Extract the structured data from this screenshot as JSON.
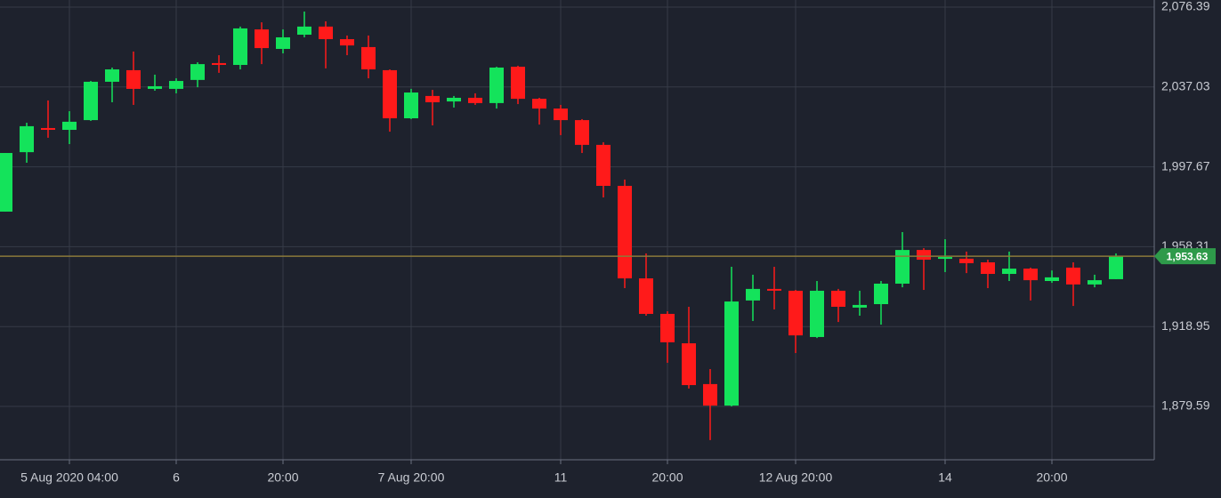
{
  "chart_data": {
    "type": "candlestick",
    "categories": [
      null,
      null,
      null,
      "5 Aug 2020 04:00",
      null,
      null,
      null,
      null,
      "6",
      null,
      null,
      null,
      null,
      "20:00",
      null,
      null,
      null,
      null,
      null,
      "7 Aug 20:00",
      null,
      null,
      null,
      null,
      null,
      null,
      "11",
      null,
      null,
      null,
      null,
      "20:00",
      null,
      null,
      null,
      null,
      null,
      "12 Aug 20:00",
      null,
      null,
      null,
      null,
      null,
      null,
      "14",
      null,
      null,
      null,
      null,
      "20:00",
      null,
      null,
      null
    ],
    "open": [
      1975.6,
      2004.9,
      2016.8,
      2015.9,
      2020.7,
      2039.6,
      2045.3,
      2036.1,
      2036.1,
      2040.5,
      2048.8,
      2047.9,
      2065.4,
      2055.8,
      2062.8,
      2066.8,
      2060.6,
      2056.7,
      2045.3,
      2021.6,
      2032.6,
      2029.9,
      2031.7,
      2029.1,
      2047.0,
      2031.2,
      2026.4,
      2020.7,
      2008.5,
      1988.3,
      1942.7,
      1925.2,
      1910.7,
      1890.6,
      1880.0,
      1931.8,
      1937.5,
      1936.6,
      1913.8,
      1936.6,
      1928.3,
      1930.0,
      1940.1,
      1956.7,
      1952.4,
      1952.4,
      1950.6,
      1944.9,
      1947.5,
      1941.4,
      1948.0,
      1939.7,
      1942.3
    ],
    "high": [
      2004.5,
      2019.4,
      2030.4,
      2025.1,
      2040.0,
      2046.6,
      2054.5,
      2043.1,
      2041.3,
      2049.2,
      2052.7,
      2066.8,
      2068.9,
      2065.4,
      2074.2,
      2069.4,
      2062.4,
      2062.4,
      2045.7,
      2036.1,
      2035.6,
      2032.6,
      2033.9,
      2047.0,
      2047.5,
      2031.7,
      2028.2,
      2021.2,
      2009.8,
      1991.4,
      1955.0,
      1926.5,
      1928.7,
      1898.0,
      1948.4,
      1944.5,
      1948.4,
      1937.0,
      1941.4,
      1937.5,
      1936.6,
      1941.4,
      1965.5,
      1957.6,
      1962.0,
      1955.9,
      1951.9,
      1955.9,
      1948.0,
      1946.6,
      1950.6,
      1944.5,
      1955.0
    ],
    "low": [
      1975.6,
      1999.7,
      2012.0,
      2008.9,
      2020.3,
      2029.5,
      2028.2,
      2035.2,
      2033.9,
      2036.9,
      2044.0,
      2045.7,
      2048.3,
      2053.6,
      2061.5,
      2046.2,
      2052.7,
      2041.3,
      2015.0,
      2021.2,
      2018.1,
      2026.9,
      2028.2,
      2026.4,
      2028.6,
      2018.5,
      2013.3,
      2004.5,
      1982.6,
      1937.9,
      1924.3,
      1901.1,
      1888.4,
      1863.0,
      1879.6,
      1921.7,
      1927.4,
      1905.9,
      1913.3,
      1921.2,
      1924.3,
      1919.9,
      1938.3,
      1937.0,
      1945.8,
      1945.3,
      1937.9,
      1941.4,
      1931.8,
      1940.5,
      1929.1,
      1938.3,
      1942.3
    ],
    "close": [
      2004.5,
      2017.7,
      2015.9,
      2019.9,
      2039.6,
      2045.7,
      2036.1,
      2037.4,
      2040.0,
      2048.3,
      2047.9,
      2065.9,
      2056.2,
      2061.5,
      2066.8,
      2060.6,
      2057.5,
      2045.7,
      2021.6,
      2034.3,
      2029.5,
      2031.7,
      2029.1,
      2046.6,
      2031.2,
      2026.4,
      2020.7,
      2008.5,
      1988.3,
      1942.7,
      1925.2,
      1911.2,
      1890.1,
      1880.0,
      1931.3,
      1937.5,
      1937.0,
      1914.6,
      1936.6,
      1928.7,
      1929.6,
      1940.1,
      1956.7,
      1951.9,
      1953.2,
      1950.2,
      1944.9,
      1947.5,
      1941.8,
      1943.2,
      1939.7,
      1941.8,
      1953.63
    ],
    "up_color": "#14e35b",
    "down_color": "#ff1a1a",
    "ylim": [
      1853.3,
      2079.9
    ],
    "yticks": [
      {
        "value": 2076.39,
        "label": "2,076.39"
      },
      {
        "value": 2037.03,
        "label": "2,037.03"
      },
      {
        "value": 1997.67,
        "label": "1,997.67"
      },
      {
        "value": 1958.31,
        "label": "1,958.31"
      },
      {
        "value": 1918.95,
        "label": "1,918.95"
      },
      {
        "value": 1879.59,
        "label": "1,879.59"
      }
    ],
    "grid": true,
    "current_price": {
      "value": 1953.63,
      "label": "1,953.63"
    },
    "current_price_color": "#2e9a4a"
  }
}
